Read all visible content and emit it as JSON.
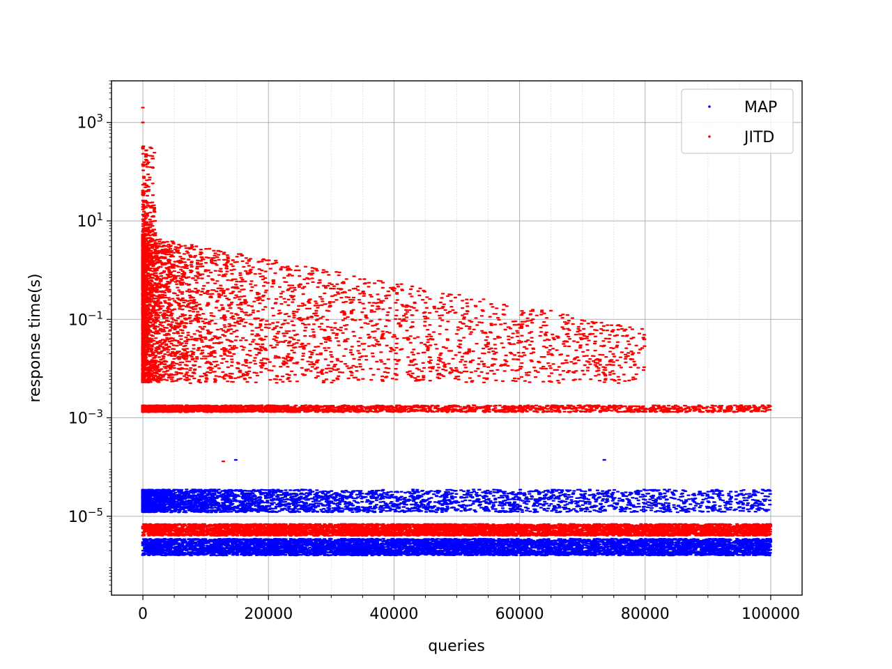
{
  "chart_data": {
    "type": "scatter",
    "title": "",
    "xlabel": "queries",
    "ylabel": "response time(s)",
    "xlim": [
      -5000,
      105000
    ],
    "ylim": [
      2.5e-07,
      7000
    ],
    "yscale": "log",
    "x_ticks": [
      0,
      20000,
      40000,
      60000,
      80000,
      100000
    ],
    "x_tick_labels": [
      "0",
      "20000",
      "40000",
      "60000",
      "80000",
      "100000"
    ],
    "x_minor_ticks": [
      5000,
      10000,
      15000,
      25000,
      30000,
      35000,
      45000,
      50000,
      55000,
      65000,
      70000,
      75000,
      85000,
      90000,
      95000
    ],
    "y_ticks": [
      1e-05,
      0.001,
      0.1,
      10,
      1000
    ],
    "y_tick_labels": [
      {
        "base": "10",
        "exp": "−5"
      },
      {
        "base": "10",
        "exp": "−3"
      },
      {
        "base": "10",
        "exp": "−1"
      },
      {
        "base": "10",
        "exp": "1"
      },
      {
        "base": "10",
        "exp": "3"
      }
    ],
    "grid": true,
    "legend_position": "top-right",
    "series": [
      {
        "name": "MAP",
        "color": "#0000ff",
        "clusters": [
          {
            "x_range": [
              0,
              100000
            ],
            "y_range": [
              1.6e-06,
              3.5e-06
            ],
            "density": "dense"
          },
          {
            "x_range": [
              0,
              100000
            ],
            "y_range": [
              1.2e-05,
              3.5e-05
            ],
            "density": "dense, thinning to the right"
          }
        ],
        "outliers": [
          [
            14800,
            0.00014
          ],
          [
            73500,
            0.00014
          ]
        ]
      },
      {
        "name": "JITD",
        "color": "#ff0000",
        "clusters": [
          {
            "x_range": [
              0,
              100000
            ],
            "y_range": [
              4e-06,
              7e-06
            ],
            "density": "dense"
          },
          {
            "x_range": [
              0,
              100000
            ],
            "y_range": [
              0.0013,
              0.0018
            ],
            "density": "dense, thinning to the right"
          },
          {
            "x_range": [
              0,
              80000
            ],
            "y_range": [
              0.005,
              5
            ],
            "density": "dense near 0, decaying with queries"
          },
          {
            "x_range": [
              0,
              2000
            ],
            "y_range": [
              5,
              2000
            ],
            "density": "initial spike"
          }
        ],
        "outliers": [
          [
            0,
            2000
          ],
          [
            0,
            1000
          ],
          [
            12800,
            0.00013
          ],
          [
            65000,
            0.15
          ]
        ]
      }
    ]
  }
}
